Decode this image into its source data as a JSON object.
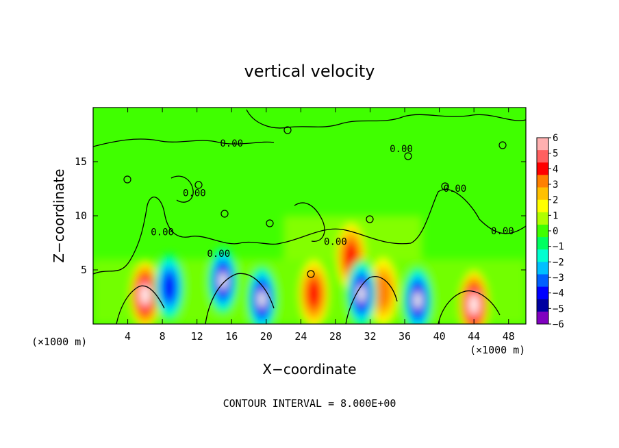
{
  "chart_data": {
    "type": "heatmap",
    "title": "vertical velocity",
    "xlabel": "X−coordinate",
    "ylabel": "Z−coordinate",
    "x_unit_label": "(×1000 m)",
    "x_unit_label_right": "(×1000 m)",
    "footer": "CONTOUR INTERVAL = 8.000E+00",
    "xlim": [
      0,
      50
    ],
    "ylim": [
      0,
      20
    ],
    "x_ticks": [
      4,
      8,
      12,
      16,
      20,
      24,
      28,
      32,
      36,
      40,
      44,
      48
    ],
    "y_ticks": [
      5,
      10,
      15
    ],
    "contour_labels": [
      {
        "text": "0.00",
        "x": 16.0,
        "y": 16.4
      },
      {
        "text": "0.00",
        "x": 8.0,
        "y": 8.2
      },
      {
        "text": "0.00",
        "x": 11.7,
        "y": 11.8
      },
      {
        "text": "0.00",
        "x": 28.0,
        "y": 7.3
      },
      {
        "text": "0.00",
        "x": 14.5,
        "y": 6.2
      },
      {
        "text": "0.00",
        "x": 35.6,
        "y": 15.9
      },
      {
        "text": "0.00",
        "x": 41.8,
        "y": 12.2
      },
      {
        "text": "0.00",
        "x": 47.3,
        "y": 8.3
      }
    ],
    "colorbar": {
      "ticks": [
        "6",
        "5",
        "4",
        "3",
        "2",
        "1",
        "0",
        "−1",
        "−2",
        "−3",
        "−4",
        "−5",
        "−6"
      ],
      "colors": [
        "#ffb0b0",
        "#ff6060",
        "#ff0000",
        "#ff8000",
        "#ffc000",
        "#ffff00",
        "#b0ff00",
        "#40ff00",
        "#00ff60",
        "#00ffd0",
        "#00c0ff",
        "#0060ff",
        "#0000ff",
        "#0000a0",
        "#8000c0"
      ]
    },
    "features": [
      {
        "kind": "updraft",
        "x": 6.0,
        "z": 2.7,
        "strength": 6
      },
      {
        "kind": "updraft",
        "x": 25.5,
        "z": 2.8,
        "strength": 4
      },
      {
        "kind": "updraft",
        "x": 29.8,
        "z": 6.2,
        "strength": 4
      },
      {
        "kind": "updraft",
        "x": 44.0,
        "z": 1.8,
        "strength": 6
      },
      {
        "kind": "updraft",
        "x": 33.5,
        "z": 3.0,
        "strength": 3
      },
      {
        "kind": "downdraft",
        "x": 15.0,
        "z": 4.0,
        "strength": -6
      },
      {
        "kind": "downdraft",
        "x": 19.5,
        "z": 2.3,
        "strength": -6
      },
      {
        "kind": "downdraft",
        "x": 31.0,
        "z": 2.8,
        "strength": -6
      },
      {
        "kind": "downdraft",
        "x": 37.5,
        "z": 2.2,
        "strength": -6
      },
      {
        "kind": "downdraft",
        "x": 8.8,
        "z": 3.4,
        "strength": -5
      }
    ]
  }
}
